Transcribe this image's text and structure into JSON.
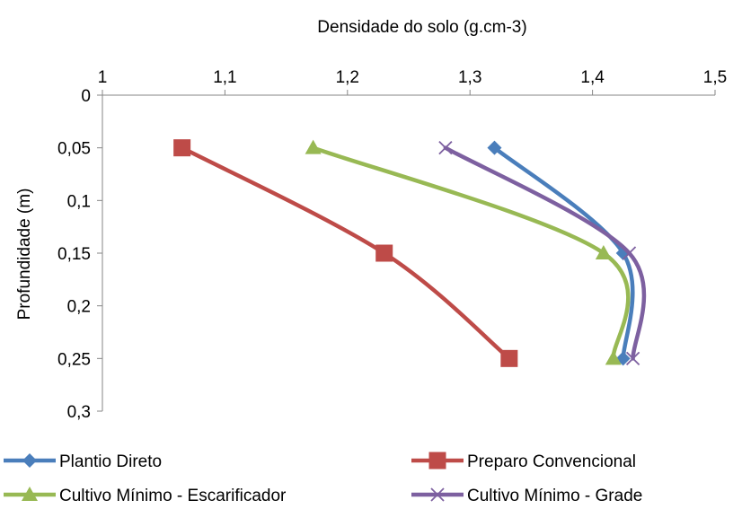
{
  "chart_data": {
    "type": "line",
    "title": "",
    "xlabel": "Densidade do solo (g.cm-3)",
    "ylabel": "Profundidade (m)",
    "xlim": [
      1,
      1.5
    ],
    "ylim": [
      0,
      0.3
    ],
    "x_axis_position": "top",
    "y_axis_inverted": true,
    "x_ticks": [
      "1",
      "1,1",
      "1,2",
      "1,3",
      "1,4",
      "1,5"
    ],
    "y_ticks": [
      "0",
      "0,05",
      "0,1",
      "0,15",
      "0,2",
      "0,25",
      "0,3"
    ],
    "grid": false,
    "legend_position": "bottom",
    "smooth_lines": true,
    "series": [
      {
        "name": "Plantio Direto",
        "color": "#4a7ebb",
        "marker": "diamond",
        "x": [
          1.32,
          1.425,
          1.425
        ],
        "y": [
          0.05,
          0.15,
          0.25
        ]
      },
      {
        "name": "Preparo Convencional",
        "color": "#be4b48",
        "marker": "square",
        "x": [
          1.065,
          1.23,
          1.332
        ],
        "y": [
          0.05,
          0.15,
          0.25
        ]
      },
      {
        "name": "Cultivo Mínimo - Escarificador",
        "color": "#98b954",
        "marker": "triangle",
        "x": [
          1.172,
          1.409,
          1.417
        ],
        "y": [
          0.05,
          0.15,
          0.25
        ]
      },
      {
        "name": "Cultivo Mínimo - Grade",
        "color": "#7d60a0",
        "marker": "x",
        "x": [
          1.28,
          1.43,
          1.433
        ],
        "y": [
          0.05,
          0.15,
          0.25
        ]
      }
    ]
  }
}
